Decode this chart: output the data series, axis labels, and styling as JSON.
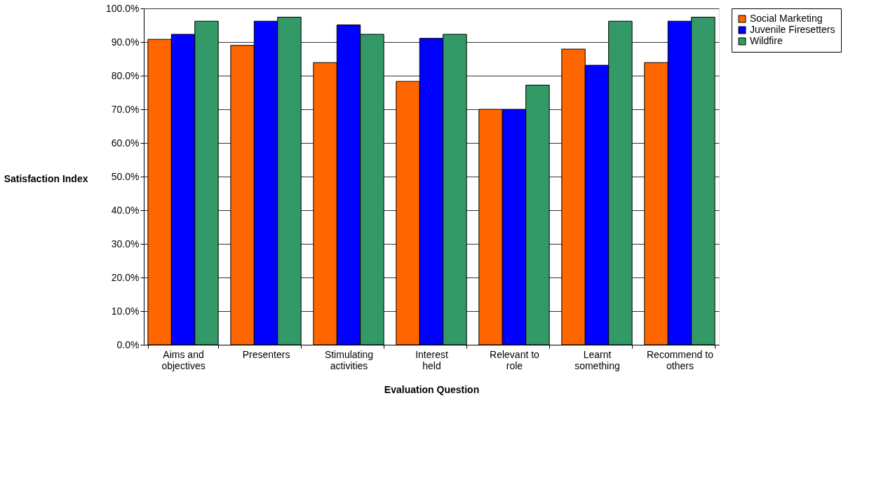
{
  "chart_data": {
    "type": "bar",
    "xlabel": "Evaluation Question",
    "ylabel": "Satisfaction Index",
    "categories": [
      "Aims and objectives",
      "Presenters",
      "Stimulating activities",
      "Interest held",
      "Relevant to role",
      "Learnt something",
      "Recommend to others"
    ],
    "series": [
      {
        "name": "Social Marketing",
        "color": "#ff6600",
        "values": [
          90.8,
          89.0,
          83.9,
          78.3,
          70.0,
          87.9,
          83.9
        ]
      },
      {
        "name": "Juvenile Firesetters",
        "color": "#0000ff",
        "values": [
          92.3,
          96.2,
          95.1,
          91.1,
          70.0,
          83.1,
          96.2
        ]
      },
      {
        "name": "Wildfire",
        "color": "#339966",
        "values": [
          96.2,
          97.4,
          92.3,
          92.3,
          77.2,
          96.2,
          97.4
        ]
      }
    ],
    "ylim": [
      0,
      100
    ],
    "yticks": [
      {
        "value": 0,
        "label": "0.0%"
      },
      {
        "value": 10,
        "label": "10.0%"
      },
      {
        "value": 20,
        "label": "20.0%"
      },
      {
        "value": 30,
        "label": "30.0%"
      },
      {
        "value": 40,
        "label": "40.0%"
      },
      {
        "value": 50,
        "label": "50.0%"
      },
      {
        "value": 60,
        "label": "60.0%"
      },
      {
        "value": 70,
        "label": "70.0%"
      },
      {
        "value": 80,
        "label": "80.0%"
      },
      {
        "value": 90,
        "label": "90.0%"
      },
      {
        "value": 100,
        "label": "100.0%"
      }
    ],
    "grid": "y",
    "legend": "right"
  }
}
